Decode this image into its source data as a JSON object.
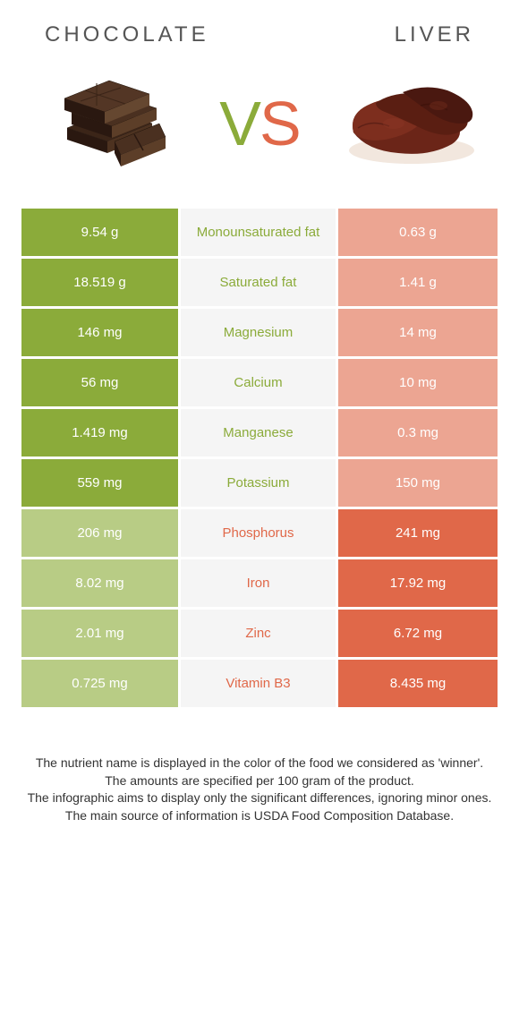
{
  "header": {
    "left_title": "Chocolate",
    "right_title": "Liver"
  },
  "vs": {
    "v": "V",
    "s": "S"
  },
  "colors": {
    "green": "#8bab3a",
    "green_faded": "#b8cc85",
    "orange": "#e06849",
    "orange_faded": "#eca592",
    "mid_bg": "#f5f5f5",
    "text_dark": "#333333"
  },
  "rows": [
    {
      "left": "9.54 g",
      "label": "Monounsaturated fat",
      "right": "0.63 g",
      "winner": "left"
    },
    {
      "left": "18.519 g",
      "label": "Saturated fat",
      "right": "1.41 g",
      "winner": "left"
    },
    {
      "left": "146 mg",
      "label": "Magnesium",
      "right": "14 mg",
      "winner": "left"
    },
    {
      "left": "56 mg",
      "label": "Calcium",
      "right": "10 mg",
      "winner": "left"
    },
    {
      "left": "1.419 mg",
      "label": "Manganese",
      "right": "0.3 mg",
      "winner": "left"
    },
    {
      "left": "559 mg",
      "label": "Potassium",
      "right": "150 mg",
      "winner": "left"
    },
    {
      "left": "206 mg",
      "label": "Phosphorus",
      "right": "241 mg",
      "winner": "right"
    },
    {
      "left": "8.02 mg",
      "label": "Iron",
      "right": "17.92 mg",
      "winner": "right"
    },
    {
      "left": "2.01 mg",
      "label": "Zinc",
      "right": "6.72 mg",
      "winner": "right"
    },
    {
      "left": "0.725 mg",
      "label": "Vitamin B3",
      "right": "8.435 mg",
      "winner": "right"
    }
  ],
  "footer": {
    "line1": "The nutrient name is displayed in the color of the food we considered as 'winner'.",
    "line2": "The amounts are specified per 100 gram of the product.",
    "line3": "The infographic aims to display only the significant differences, ignoring minor ones.",
    "line4": "The main source of information is USDA Food Composition Database."
  }
}
